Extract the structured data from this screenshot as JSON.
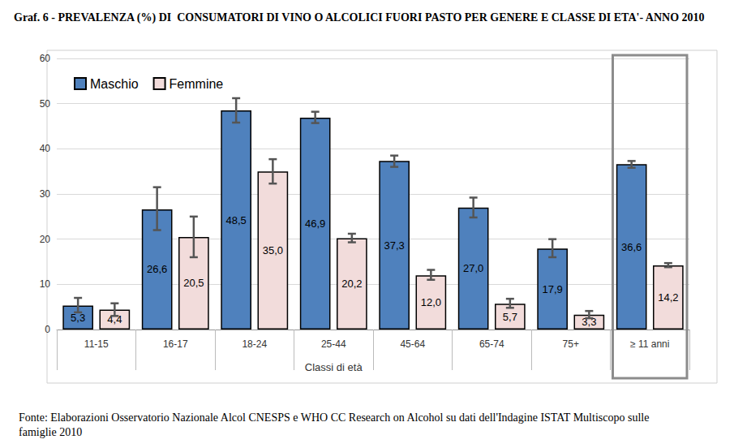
{
  "chart_data": {
    "type": "bar",
    "title": "Graf. 6 - PREVALENZA (%) DI  CONSUMATORI DI VINO O ALCOLICI FUORI PASTO PER GENERE E CLASSE DI ETA'- ANNO 2010",
    "x_label": "Classi di età",
    "source": "Fonte: Elaborazioni Osservatorio Nazionale Alcol CNESPS e WHO CC Research on Alcohol su dati dell'Indagine ISTAT Multiscopo sulle famiglie 2010",
    "categories": [
      "11-15",
      "16-17",
      "18-24",
      "25-44",
      "45-64",
      "65-74",
      "75+",
      "≥ 11 anni"
    ],
    "series": [
      {
        "name": "Maschio",
        "color": "#4F81BD",
        "values": [
          5.3,
          26.6,
          48.5,
          46.9,
          37.3,
          27.0,
          17.9,
          36.6
        ],
        "value_labels": [
          "5,3",
          "26,6",
          "48,5",
          "46,9",
          "37,3",
          "27,0",
          "17,9",
          "36,6"
        ],
        "error_low": [
          3.8,
          22.0,
          45.8,
          45.7,
          36.0,
          24.8,
          16.0,
          35.8
        ],
        "error_high": [
          7.0,
          31.5,
          51.2,
          48.2,
          38.5,
          29.2,
          20.0,
          37.3
        ]
      },
      {
        "name": "Femmine",
        "color": "#F2DCDB",
        "values": [
          4.4,
          20.5,
          35.0,
          20.2,
          12.0,
          5.7,
          3.3,
          14.2
        ],
        "value_labels": [
          "4,4",
          "20,5",
          "35,0",
          "20,2",
          "12,0",
          "5,7",
          "3,3",
          "14,2"
        ],
        "error_low": [
          3.0,
          16.0,
          32.3,
          19.3,
          11.0,
          4.8,
          2.5,
          13.8
        ],
        "error_high": [
          5.8,
          25.0,
          37.7,
          21.2,
          13.2,
          6.8,
          4.1,
          14.7
        ]
      }
    ],
    "ylim": [
      0,
      60
    ],
    "yticks": [
      0,
      10,
      20,
      30,
      40,
      50,
      60
    ],
    "grid": true,
    "legend": "upper left",
    "data_labels": true
  }
}
